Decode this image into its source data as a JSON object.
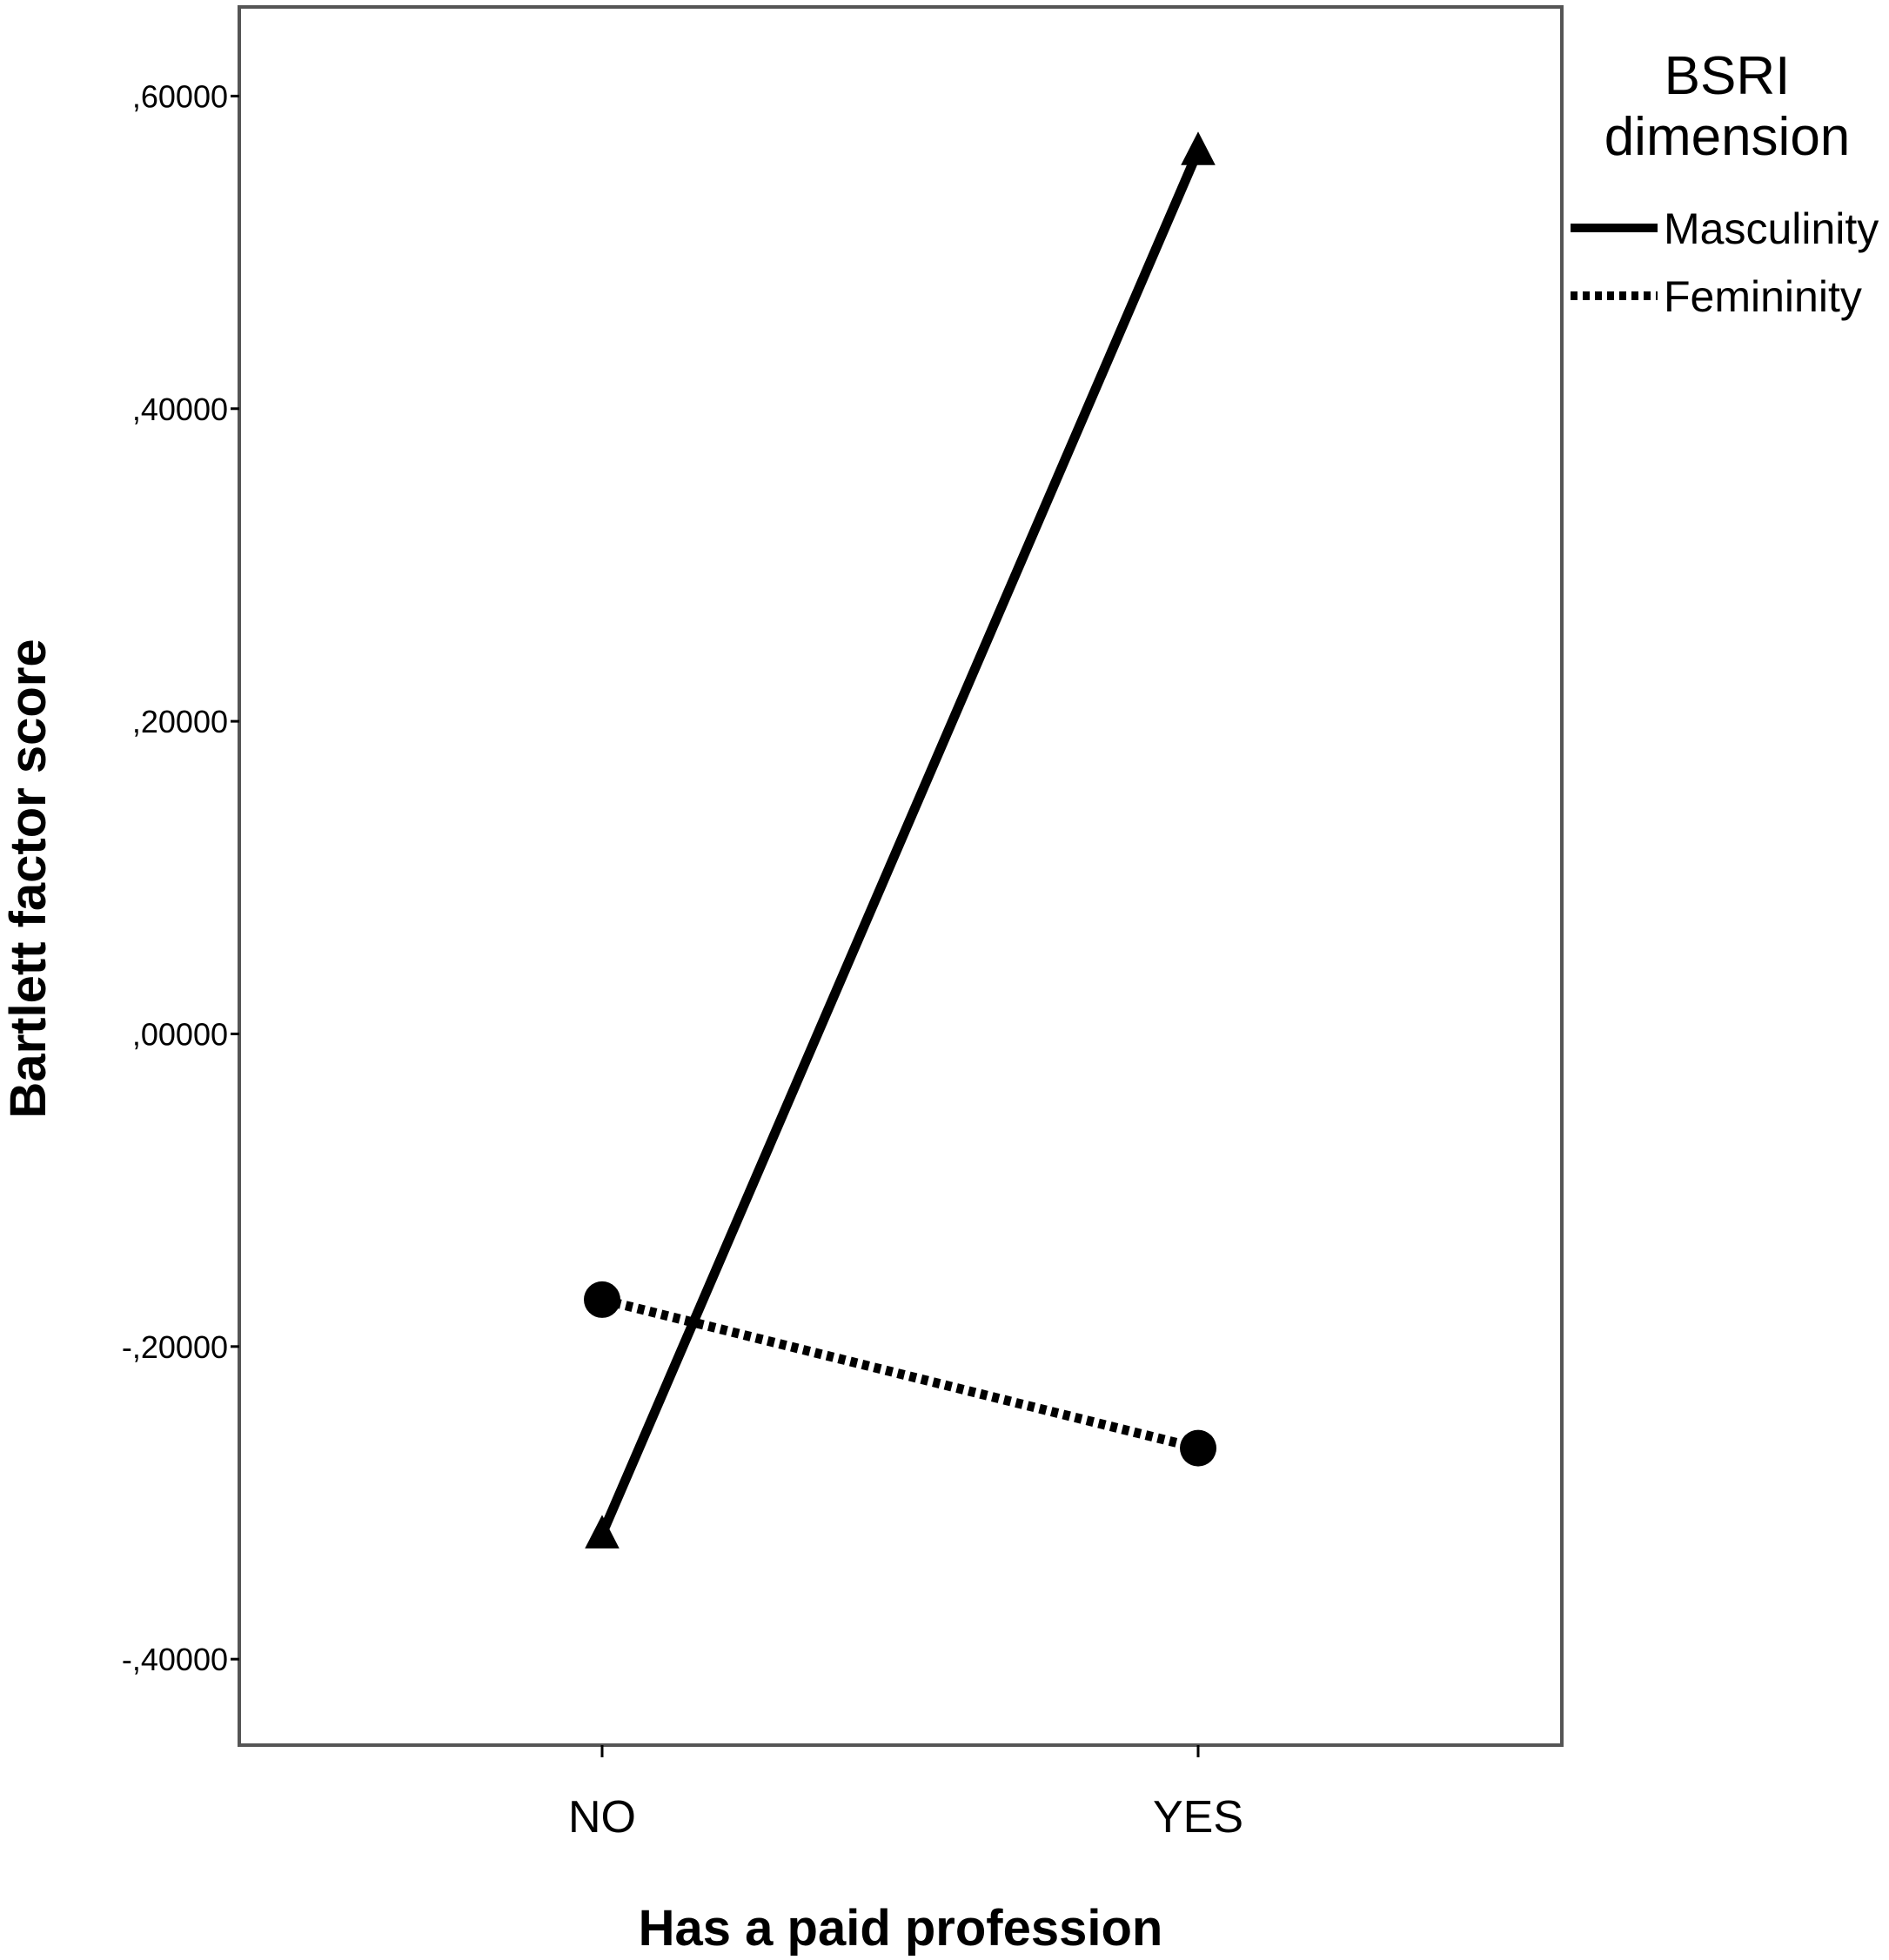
{
  "chart_data": {
    "type": "line",
    "x_label": "Has a paid profession",
    "y_label": "Bartlett factor score",
    "categories": [
      "NO",
      "YES"
    ],
    "y_ticks": [
      ",60000",
      ",40000",
      ",20000",
      ",00000",
      "-,20000",
      "-,40000"
    ],
    "y_tick_values": [
      0.6,
      0.4,
      0.2,
      0.0,
      -0.2,
      -0.4
    ],
    "ylim": [
      -0.455,
      0.657
    ],
    "grid": false,
    "legend": {
      "title_lines": [
        "BSRI",
        "dimension"
      ],
      "position": "right"
    },
    "series": [
      {
        "name": "Masculinity",
        "values": [
          -0.32,
          0.565
        ],
        "line_style": "solid",
        "marker": "triangle",
        "color": "#000000"
      },
      {
        "name": "Femininity",
        "values": [
          -0.17,
          -0.265
        ],
        "line_style": "dotted",
        "marker": "circle",
        "color": "#000000"
      }
    ]
  }
}
